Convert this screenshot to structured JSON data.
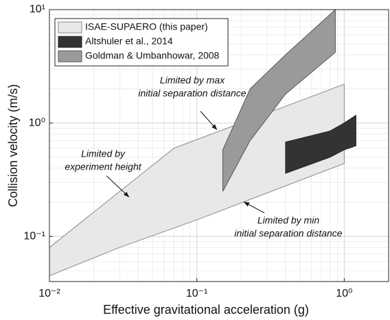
{
  "chart_data": {
    "type": "area",
    "xlabel": "Effective gravitational acceleration (g)",
    "ylabel": "Collision velocity (m/s)",
    "log_x": true,
    "log_y": true,
    "grid": true,
    "legend": "upper left",
    "xlim": [
      0.01,
      2
    ],
    "ylim": [
      0.04,
      10
    ],
    "xticks": [
      {
        "value": 0.01,
        "label": "10⁻²"
      },
      {
        "value": 0.1,
        "label": "10⁻¹"
      },
      {
        "value": 1,
        "label": "10⁰"
      }
    ],
    "yticks": [
      {
        "value": 0.1,
        "label": "10⁻¹"
      },
      {
        "value": 1,
        "label": "10⁰"
      },
      {
        "value": 10,
        "label": "10¹"
      }
    ],
    "series": [
      {
        "name": "ISAE-SUPAERO (this paper)",
        "color": "#e8e8e8",
        "edge": "#8a8a8a",
        "x": [
          0.01,
          0.07,
          1,
          1,
          0.1,
          0.03,
          0.01
        ],
        "values": [
          0.08,
          0.6,
          2.2,
          0.44,
          0.14,
          0.08,
          0.045
        ]
      },
      {
        "name": "Altshuler et al., 2014",
        "color": "#333333",
        "edge": "#222222",
        "x": [
          0.4,
          0.8,
          1,
          1.2,
          1.2,
          1,
          0.8,
          0.4
        ],
        "values": [
          0.68,
          0.85,
          1.0,
          1.17,
          0.63,
          0.58,
          0.5,
          0.36
        ]
      },
      {
        "name": "Goldman & Umbanhowar, 2008",
        "color": "#9a9a9a",
        "edge": "#555555",
        "x": [
          0.15,
          0.23,
          0.4,
          0.87,
          0.87,
          0.4,
          0.23,
          0.15
        ],
        "values": [
          0.58,
          2,
          4,
          10,
          4.2,
          1.8,
          0.7,
          0.25
        ]
      }
    ],
    "annotations": [
      [
        "Limited by max",
        "initial separation distance"
      ],
      [
        "Limited by",
        "experiment height"
      ],
      [
        "Limited by min",
        "initial separation distance"
      ]
    ]
  }
}
